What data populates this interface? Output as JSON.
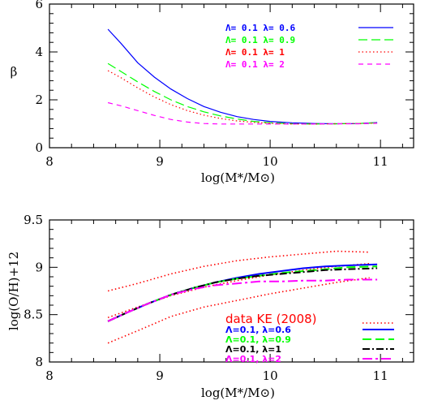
{
  "chart_data": [
    {
      "type": "line",
      "title": "",
      "xlabel": "log(M*/M⊙)",
      "ylabel": "β",
      "xlim": [
        8,
        11.3
      ],
      "ylim": [
        0,
        6
      ],
      "xticks": [
        8,
        9,
        10,
        11
      ],
      "yticks": [
        0,
        2,
        4,
        6
      ],
      "xtick_labels": [
        "8",
        "9",
        "10",
        "11"
      ],
      "ytick_labels": [
        "0",
        "2",
        "4",
        "6"
      ],
      "legend_placement": "top-right",
      "series": [
        {
          "name": "Λ= 0.1 λ= 0.6",
          "color": "#0000ff",
          "dash": "solid",
          "x": [
            8.53,
            8.65,
            8.8,
            8.95,
            9.1,
            9.25,
            9.4,
            9.55,
            9.7,
            9.85,
            10.0,
            10.2,
            10.4,
            10.6,
            10.8,
            10.97
          ],
          "y": [
            4.95,
            4.35,
            3.55,
            2.95,
            2.45,
            2.05,
            1.72,
            1.48,
            1.3,
            1.18,
            1.1,
            1.04,
            1.01,
            1.0,
            1.01,
            1.05
          ]
        },
        {
          "name": "Λ= 0.1 λ= 0.9",
          "color": "#00ff00",
          "dash": "longdash",
          "x": [
            8.53,
            8.65,
            8.8,
            8.95,
            9.1,
            9.25,
            9.4,
            9.55,
            9.7,
            9.85,
            10.0,
            10.2,
            10.4,
            10.6,
            10.8,
            10.97
          ],
          "y": [
            3.52,
            3.18,
            2.75,
            2.35,
            2.0,
            1.72,
            1.5,
            1.33,
            1.2,
            1.1,
            1.04,
            1.0,
            0.99,
            1.0,
            1.01,
            1.04
          ]
        },
        {
          "name": "Λ= 0.1 λ= 1",
          "color": "#ff0000",
          "dash": "dotted",
          "x": [
            8.53,
            8.65,
            8.8,
            8.95,
            9.1,
            9.25,
            9.4,
            9.55,
            9.7,
            9.85,
            10.0,
            10.2,
            10.4,
            10.6,
            10.8,
            10.97
          ],
          "y": [
            3.22,
            2.92,
            2.5,
            2.12,
            1.8,
            1.55,
            1.36,
            1.22,
            1.12,
            1.06,
            1.02,
            0.99,
            0.99,
            1.0,
            1.01,
            1.03
          ]
        },
        {
          "name": "Λ= 0.1 λ= 2",
          "color": "#ff00ff",
          "dash": "dashed",
          "x": [
            8.53,
            8.65,
            8.8,
            8.95,
            9.1,
            9.25,
            9.4,
            9.55,
            9.7,
            9.85,
            10.0,
            10.2,
            10.4,
            10.6,
            10.8,
            10.97
          ],
          "y": [
            1.88,
            1.75,
            1.55,
            1.35,
            1.18,
            1.07,
            1.01,
            0.99,
            0.99,
            0.99,
            0.99,
            0.99,
            0.99,
            1.0,
            1.0,
            1.02
          ]
        }
      ]
    },
    {
      "type": "line",
      "title": "",
      "xlabel": "log(M*/M⊙)",
      "ylabel": "log(O/H)+12",
      "xlim": [
        8,
        11.3
      ],
      "ylim": [
        8,
        9.5
      ],
      "xticks": [
        8,
        9,
        10,
        11
      ],
      "yticks": [
        8,
        8.5,
        9,
        9.5
      ],
      "xtick_labels": [
        "8",
        "9",
        "10",
        "11"
      ],
      "ytick_labels": [
        "8",
        "8.5",
        "9",
        "9.5"
      ],
      "legend_title": "data KE (2008)",
      "legend_placement": "bottom-right",
      "data_bands": [
        {
          "name": "data KE upper",
          "color": "#ff0000",
          "dash": "dotted",
          "x": [
            8.53,
            8.8,
            9.1,
            9.4,
            9.7,
            10.0,
            10.3,
            10.6,
            10.9
          ],
          "y": [
            8.75,
            8.83,
            8.93,
            9.01,
            9.07,
            9.11,
            9.14,
            9.17,
            9.16
          ]
        },
        {
          "name": "data KE median",
          "color": "#ff0000",
          "dash": "dotted",
          "x": [
            8.53,
            8.8,
            9.1,
            9.4,
            9.7,
            10.0,
            10.3,
            10.6,
            10.9
          ],
          "y": [
            8.47,
            8.58,
            8.7,
            8.79,
            8.86,
            8.92,
            8.97,
            9.01,
            9.04
          ]
        },
        {
          "name": "data KE lower",
          "color": "#ff0000",
          "dash": "dotted",
          "x": [
            8.53,
            8.8,
            9.1,
            9.4,
            9.7,
            10.0,
            10.3,
            10.6,
            10.9
          ],
          "y": [
            8.2,
            8.33,
            8.48,
            8.58,
            8.65,
            8.72,
            8.78,
            8.84,
            8.89
          ]
        }
      ],
      "series": [
        {
          "name": "Λ=0.1, λ=0.6",
          "color": "#0000ff",
          "dash": "solid",
          "x": [
            8.53,
            8.7,
            8.9,
            9.1,
            9.3,
            9.5,
            9.7,
            9.9,
            10.1,
            10.3,
            10.5,
            10.7,
            10.97
          ],
          "y": [
            8.43,
            8.52,
            8.62,
            8.71,
            8.78,
            8.84,
            8.89,
            8.93,
            8.96,
            8.99,
            9.01,
            9.02,
            9.03
          ]
        },
        {
          "name": "Λ=0.1, λ=0.9",
          "color": "#00ff00",
          "dash": "longdash",
          "x": [
            8.53,
            8.7,
            8.9,
            9.1,
            9.3,
            9.5,
            9.7,
            9.9,
            10.1,
            10.3,
            10.5,
            10.7,
            10.97
          ],
          "y": [
            8.43,
            8.52,
            8.62,
            8.71,
            8.78,
            8.84,
            8.88,
            8.91,
            8.94,
            8.96,
            8.98,
            9.0,
            9.01
          ]
        },
        {
          "name": "Λ=0.1, λ=1",
          "color": "#000000",
          "dash": "dashdot",
          "x": [
            8.53,
            8.7,
            8.9,
            9.1,
            9.3,
            9.5,
            9.7,
            9.9,
            10.1,
            10.3,
            10.5,
            10.7,
            10.97
          ],
          "y": [
            8.43,
            8.52,
            8.62,
            8.71,
            8.78,
            8.84,
            8.88,
            8.91,
            8.93,
            8.95,
            8.97,
            8.98,
            8.99
          ]
        },
        {
          "name": "Λ=0.1, λ=2",
          "color": "#ff00ff",
          "dash": "dashdot-long",
          "x": [
            8.53,
            8.7,
            8.9,
            9.1,
            9.3,
            9.5,
            9.7,
            9.9,
            10.1,
            10.3,
            10.5,
            10.7,
            10.97
          ],
          "y": [
            8.43,
            8.52,
            8.62,
            8.71,
            8.77,
            8.81,
            8.83,
            8.85,
            8.85,
            8.86,
            8.86,
            8.87,
            8.87
          ]
        }
      ]
    }
  ]
}
